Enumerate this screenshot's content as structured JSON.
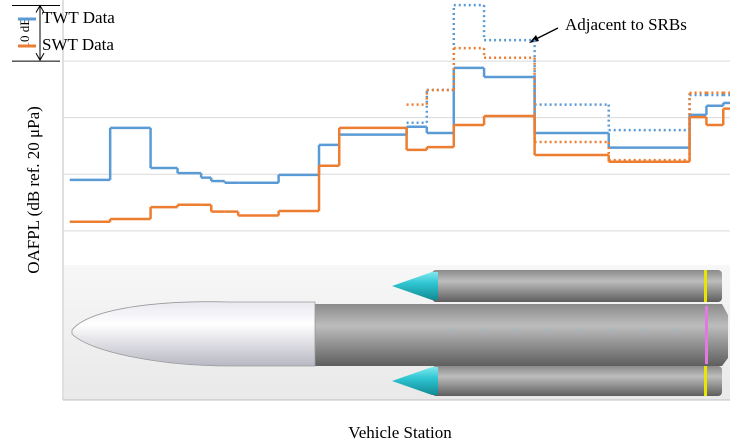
{
  "chart_data": {
    "type": "step",
    "y_label": "OAFPL (dB ref. 20 μPa)",
    "x_label": "Vehicle Station",
    "annotation": "Adjacent to SRBs",
    "scale_bar": {
      "value": 10,
      "label": "10 dB"
    },
    "x": [
      1,
      7,
      13,
      17,
      20.5,
      22,
      24,
      26,
      32,
      38,
      41,
      51,
      54,
      58,
      62.5,
      70,
      81,
      93,
      95.5,
      98
    ],
    "xlim": [
      0,
      99
    ],
    "ylim": [
      -29.9,
      40.8
    ],
    "yticks": [
      0,
      10,
      20,
      30
    ],
    "grid": true,
    "series": [
      {
        "name": "TWT Data",
        "color": "#5b9bd5",
        "dashed": false,
        "values": [
          9.0,
          18.2,
          11.1,
          10.2,
          9.4,
          8.8,
          8.5,
          8.5,
          9.9,
          15.2,
          17.0,
          18.4,
          17.3,
          28.8,
          27.2,
          17.3,
          14.7,
          20.5,
          22.1,
          22.6
        ]
      },
      {
        "name": "SWT Data",
        "color": "#ed7d31",
        "dashed": false,
        "values": [
          1.6,
          2.1,
          4.2,
          4.6,
          4.6,
          3.4,
          3.4,
          2.7,
          3.5,
          11.5,
          18.2,
          14.3,
          14.8,
          18.7,
          20.3,
          13.4,
          12.2,
          20.1,
          18.7,
          21.6
        ]
      },
      {
        "color": "#5b9bd5",
        "dashed": true,
        "values": [
          null,
          null,
          null,
          null,
          null,
          null,
          null,
          null,
          null,
          null,
          null,
          19.1,
          24.9,
          39.9,
          33.7,
          22.3,
          17.8,
          24.0,
          24.0,
          24.0
        ]
      },
      {
        "color": "#ed7d31",
        "dashed": true,
        "values": [
          null,
          null,
          null,
          null,
          null,
          null,
          null,
          null,
          null,
          null,
          null,
          22.3,
          24.9,
          32.3,
          30.6,
          15.7,
          12.5,
          24.4,
          24.4,
          24.4
        ]
      }
    ]
  }
}
